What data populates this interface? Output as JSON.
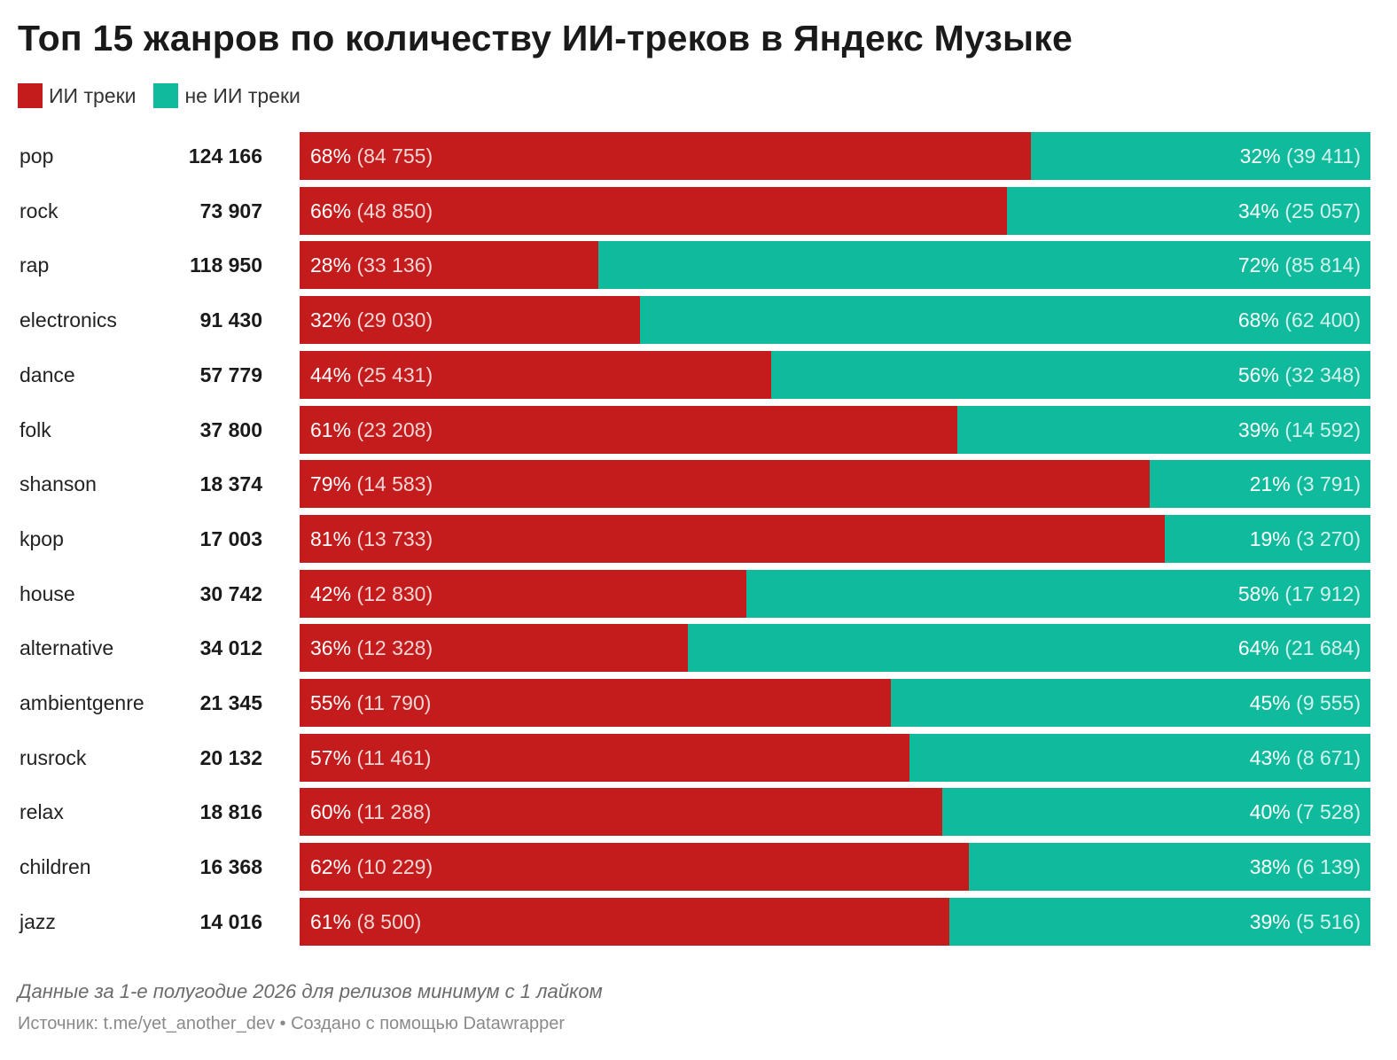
{
  "title": "Топ 15 жанров по количеству ИИ-треков в Яндекс Музыке",
  "legend": [
    {
      "label": "ИИ треки",
      "color": "#c41c1c"
    },
    {
      "label": "не ИИ треки",
      "color": "#0fbb9c"
    }
  ],
  "chart_data": {
    "type": "bar",
    "stacked": true,
    "orientation": "horizontal",
    "percent_stacked": true,
    "categories": [
      "pop",
      "rock",
      "rap",
      "electronics",
      "dance",
      "folk",
      "shanson",
      "kpop",
      "house",
      "alternative",
      "ambientgenre",
      "rusrock",
      "relax",
      "children",
      "jazz"
    ],
    "totals": [
      "124 166",
      "73 907",
      "118 950",
      "91 430",
      "57 779",
      "37 800",
      "18 374",
      "17 003",
      "30 742",
      "34 012",
      "21 345",
      "20 132",
      "18 816",
      "16 368",
      "14 016"
    ],
    "series": [
      {
        "name": "ИИ треки",
        "color": "#c41c1c",
        "percent": [
          68,
          66,
          28,
          32,
          44,
          61,
          79,
          81,
          42,
          36,
          55,
          57,
          60,
          62,
          61
        ],
        "values": [
          84755,
          48850,
          33136,
          29030,
          25431,
          23208,
          14583,
          13733,
          12830,
          12328,
          11790,
          11461,
          11288,
          10229,
          8500
        ],
        "pct_labels": [
          "68%",
          "66%",
          "28%",
          "32%",
          "44%",
          "61%",
          "79%",
          "81%",
          "42%",
          "36%",
          "55%",
          "57%",
          "60%",
          "62%",
          "61%"
        ],
        "value_labels": [
          "(84 755)",
          "(48 850)",
          "(33 136)",
          "(29 030)",
          "(25 431)",
          "(23 208)",
          "(14 583)",
          "(13 733)",
          "(12 830)",
          "(12 328)",
          "(11 790)",
          "(11 461)",
          "(11 288)",
          "(10 229)",
          "(8 500)"
        ]
      },
      {
        "name": "не ИИ треки",
        "color": "#0fbb9c",
        "percent": [
          32,
          34,
          72,
          68,
          56,
          39,
          21,
          19,
          58,
          64,
          45,
          43,
          40,
          38,
          39
        ],
        "values": [
          39411,
          25057,
          85814,
          62400,
          32348,
          14592,
          3791,
          3270,
          17912,
          21684,
          9555,
          8671,
          7528,
          6139,
          5516
        ],
        "pct_labels": [
          "32%",
          "34%",
          "72%",
          "68%",
          "56%",
          "39%",
          "21%",
          "19%",
          "58%",
          "64%",
          "45%",
          "43%",
          "40%",
          "38%",
          "39%"
        ],
        "value_labels": [
          "(39 411)",
          "(25 057)",
          "(85 814)",
          "(62 400)",
          "(32 348)",
          "(14 592)",
          "(3 791)",
          "(3 270)",
          "(17 912)",
          "(21 684)",
          "(9 555)",
          "(8 671)",
          "(7 528)",
          "(6 139)",
          "(5 516)"
        ]
      }
    ]
  },
  "footer": {
    "note": "Данные за 1-е полугодие 2026 для релизов минимум с 1 лайком",
    "source": "Источник: t.me/yet_another_dev • Создано с помощью Datawrapper"
  }
}
